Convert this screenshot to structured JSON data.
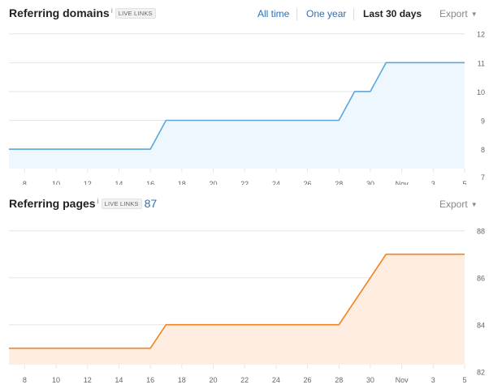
{
  "ranges": {
    "all_time": "All time",
    "one_year": "One year",
    "last_30_days": "Last 30 days"
  },
  "export_label": "Export",
  "colors": {
    "domains_line": "#5aa7da",
    "domains_fill": "#eef6fe",
    "pages_line": "#f18320",
    "pages_fill": "#feede0",
    "grid": "#e6e6e6",
    "axis_text": "#666666"
  },
  "referring_domains": {
    "title": "Referring domains",
    "info": "i",
    "badge": "LIVE LINKS"
  },
  "referring_pages": {
    "title": "Referring pages",
    "info": "i",
    "badge": "LIVE LINKS",
    "count": "87"
  },
  "chart_data": [
    {
      "type": "area",
      "title": "Referring domains",
      "x_ticks": [
        "8",
        "10",
        "12",
        "14",
        "16",
        "18",
        "20",
        "22",
        "24",
        "26",
        "28",
        "30",
        "Nov",
        "3",
        "5"
      ],
      "y_ticks": [
        7,
        8,
        9,
        10,
        11,
        12
      ],
      "ylim": [
        7.33,
        12.33
      ],
      "grid": true,
      "series": [
        {
          "x": [
            "Oct 7",
            "Oct 16",
            "Oct 17",
            "Oct 28",
            "Oct 29",
            "Oct 30",
            "Oct 31",
            "Nov 5"
          ],
          "values": [
            8,
            8,
            9,
            9,
            10,
            10,
            11,
            11
          ]
        }
      ]
    },
    {
      "type": "area",
      "title": "Referring pages",
      "x_ticks": [
        "8",
        "10",
        "12",
        "14",
        "16",
        "18",
        "20",
        "22",
        "24",
        "26",
        "28",
        "30",
        "Nov",
        "3",
        "5"
      ],
      "y_ticks": [
        82,
        84,
        86,
        88
      ],
      "ylim": [
        82.3,
        88.3
      ],
      "grid": true,
      "series": [
        {
          "x": [
            "Oct 7",
            "Oct 16",
            "Oct 17",
            "Oct 28",
            "Oct 31",
            "Nov 5"
          ],
          "values": [
            83,
            83,
            84,
            84,
            87,
            87
          ]
        }
      ]
    }
  ]
}
